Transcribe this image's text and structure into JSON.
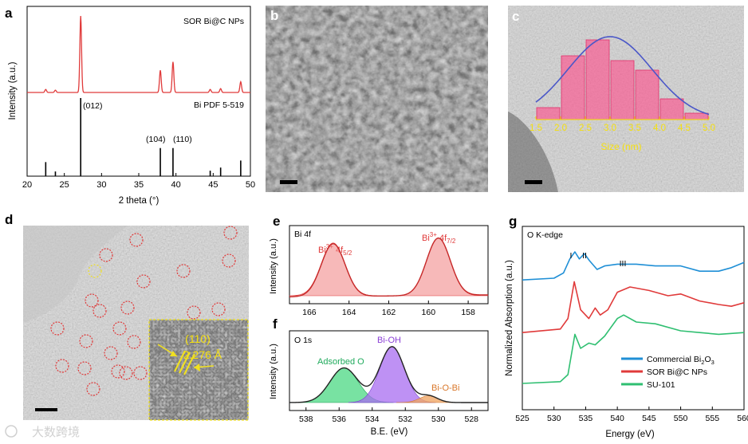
{
  "panel_letters": [
    "a",
    "b",
    "c",
    "d",
    "e",
    "f",
    "g"
  ],
  "panel_a": {
    "sample_label": "SOR Bi@C NPs",
    "ref_label": "Bi PDF 5-519",
    "xlabel": "2 theta (°)",
    "ylabel": "Intensity (a.u.)",
    "xticks": [
      "20",
      "25",
      "30",
      "35",
      "40",
      "45",
      "50"
    ],
    "annotations": [
      "(012)",
      "(104)",
      "(110)"
    ]
  },
  "panel_c": {
    "xticks": [
      "1.5",
      "2.0",
      "2.5",
      "3.0",
      "3.5",
      "4.0",
      "4.5",
      "5.0"
    ],
    "xlabel": "Size (nm)"
  },
  "panel_d": {
    "lattice_plane": "(110)",
    "lattice_spacing": "2.276 Å"
  },
  "panel_e": {
    "title": "Bi 4f",
    "peak_left": {
      "main": "Bi",
      "sup": "3+",
      "mid": " 4f",
      "sub": "5/2"
    },
    "peak_right": {
      "main": "Bi",
      "sup": "3+",
      "mid": " 4f",
      "sub": "7/2"
    },
    "ylabel": "Intensity (a.u.)",
    "xticks": [
      "166",
      "164",
      "162",
      "160",
      "158"
    ]
  },
  "panel_f": {
    "title": "O 1s",
    "labels": [
      "Adsorbed O",
      "Bi-OH",
      "Bi-O-Bi"
    ],
    "ylabel": "Intensity (a.u.)",
    "xlabel": "B.E. (eV)",
    "xticks": [
      "538",
      "536",
      "534",
      "532",
      "530",
      "528"
    ]
  },
  "panel_g": {
    "title": "O K-edge",
    "peak_marks": [
      "I",
      "II",
      "III"
    ],
    "ylabel": "Normalized Absorption (a.u.)",
    "xlabel": "Energy (eV)",
    "xticks": [
      "525",
      "530",
      "535",
      "540",
      "545",
      "550",
      "555",
      "560"
    ],
    "legend": [
      {
        "main": "Commercial Bi",
        "sub": "2",
        "tail": "O",
        "sub2": "3",
        "color": "#1f8fd6"
      },
      {
        "main": "SOR Bi@C NPs",
        "sub": "",
        "tail": "",
        "sub2": "",
        "color": "#e03a3a"
      },
      {
        "main": "SU-101",
        "sub": "",
        "tail": "",
        "sub2": "",
        "color": "#2fbf71"
      }
    ]
  },
  "watermark": "大数跨境",
  "chart_data": [
    {
      "panel": "a",
      "type": "line",
      "xlabel": "2 theta (°)",
      "ylabel": "Intensity (a.u.)",
      "xlim": [
        20,
        50
      ],
      "series": [
        {
          "name": "SOR Bi@C NPs",
          "color": "#e03a3a",
          "peaks": [
            {
              "x": 22.5,
              "h": 0.04
            },
            {
              "x": 23.8,
              "h": 0.03
            },
            {
              "x": 27.2,
              "h": 1.0
            },
            {
              "x": 37.9,
              "h": 0.29
            },
            {
              "x": 39.6,
              "h": 0.4
            },
            {
              "x": 44.6,
              "h": 0.04
            },
            {
              "x": 46.0,
              "h": 0.05
            },
            {
              "x": 48.7,
              "h": 0.14
            }
          ]
        },
        {
          "name": "Bi PDF 5-519",
          "type": "stick",
          "x": [
            22.5,
            23.8,
            27.2,
            37.9,
            39.6,
            44.6,
            46.0,
            48.7
          ],
          "values": [
            0.18,
            0.06,
            1.0,
            0.36,
            0.36,
            0.07,
            0.11,
            0.2
          ]
        }
      ]
    },
    {
      "panel": "c",
      "type": "bar",
      "xlabel": "Size (nm)",
      "xlim": [
        1.5,
        5.0
      ],
      "categories": [
        1.75,
        2.25,
        2.75,
        3.25,
        3.75,
        4.25,
        4.75
      ],
      "values": [
        0.15,
        0.8,
        1.0,
        0.74,
        0.62,
        0.26,
        0.08
      ],
      "fit": {
        "type": "gaussian",
        "mean": 3.0,
        "sigma": 0.85
      }
    },
    {
      "panel": "e",
      "type": "line",
      "xlabel": "B.E. (eV)",
      "ylabel": "Intensity (a.u.)",
      "xlim": [
        167,
        157
      ],
      "reversed": true,
      "components": [
        {
          "label": "Bi3+ 4f5/2",
          "center": 164.8,
          "width": 0.6,
          "height": 0.92
        },
        {
          "label": "Bi3+ 4f7/2",
          "center": 159.5,
          "width": 0.6,
          "height": 1.0
        }
      ]
    },
    {
      "panel": "f",
      "type": "line",
      "xlabel": "B.E. (eV)",
      "ylabel": "Intensity (a.u.)",
      "xlim": [
        539,
        527
      ],
      "reversed": true,
      "components": [
        {
          "label": "Adsorbed O",
          "center": 535.7,
          "width": 0.85,
          "height": 0.62,
          "color": "#3ed67a"
        },
        {
          "label": "Bi-OH",
          "center": 532.8,
          "width": 0.75,
          "height": 1.0,
          "color": "#a86cf0"
        },
        {
          "label": "Bi-O-Bi",
          "center": 530.6,
          "width": 0.55,
          "height": 0.12,
          "color": "#f0a868"
        }
      ]
    },
    {
      "panel": "g",
      "type": "line",
      "xlabel": "Energy (eV)",
      "ylabel": "Normalized Absorption (a.u.)",
      "xlim": [
        525,
        560
      ],
      "series": [
        {
          "name": "Commercial Bi2O3",
          "color": "#1f8fd6",
          "x": [
            525,
            530,
            531.5,
            532.5,
            533.3,
            534.0,
            534.8,
            535.6,
            536.8,
            538,
            540,
            543,
            546,
            550,
            553,
            556,
            558,
            560
          ],
          "y": [
            0.74,
            0.75,
            0.78,
            0.86,
            0.9,
            0.86,
            0.89,
            0.85,
            0.8,
            0.82,
            0.83,
            0.83,
            0.82,
            0.82,
            0.79,
            0.79,
            0.81,
            0.84
          ]
        },
        {
          "name": "SOR Bi@C NPs",
          "color": "#e03a3a",
          "x": [
            525,
            531,
            532.2,
            533.2,
            534.2,
            535.5,
            536.5,
            537.3,
            538.5,
            540,
            542,
            545,
            548,
            550,
            553,
            556,
            558,
            560
          ],
          "y": [
            0.44,
            0.46,
            0.52,
            0.73,
            0.57,
            0.52,
            0.58,
            0.54,
            0.57,
            0.67,
            0.7,
            0.68,
            0.65,
            0.66,
            0.62,
            0.6,
            0.59,
            0.61
          ]
        },
        {
          "name": "SU-101",
          "color": "#2fbf71",
          "x": [
            525,
            531,
            532.2,
            533.3,
            534.2,
            535.5,
            536.5,
            538,
            540,
            541,
            543,
            546,
            550,
            553,
            556,
            560
          ],
          "y": [
            0.15,
            0.16,
            0.2,
            0.43,
            0.35,
            0.38,
            0.37,
            0.42,
            0.52,
            0.54,
            0.5,
            0.49,
            0.45,
            0.44,
            0.43,
            0.44
          ]
        }
      ]
    }
  ]
}
